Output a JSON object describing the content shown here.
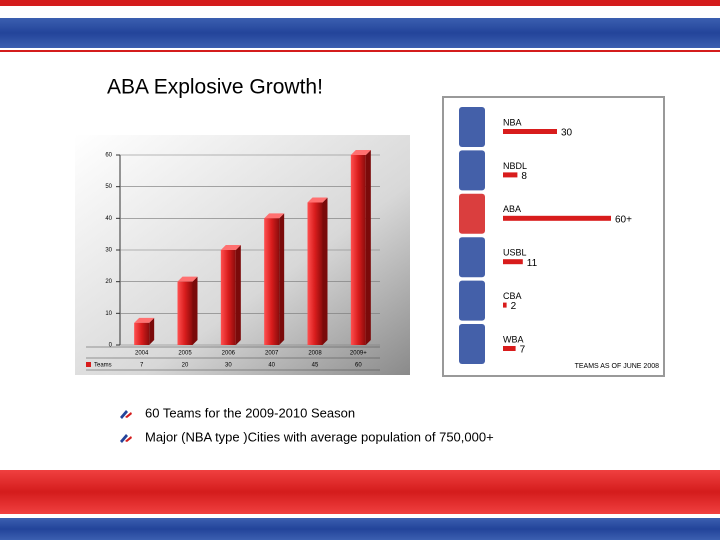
{
  "title": "ABA Explosive Growth!",
  "chart_data": [
    {
      "type": "bar",
      "categories": [
        "2004",
        "2005",
        "2006",
        "2007",
        "2008",
        "2009+"
      ],
      "series": [
        {
          "name": "Teams",
          "color": "#d81c1c",
          "values": [
            7,
            20,
            30,
            40,
            45,
            60
          ]
        }
      ],
      "ylim": [
        0,
        60
      ],
      "yticks": [
        0,
        10,
        20,
        30,
        40,
        50,
        60
      ],
      "grid": true
    },
    {
      "type": "hbar",
      "categories": [
        "NBA",
        "NBDL",
        "ABA",
        "USBL",
        "CBA",
        "WBA"
      ],
      "values": [
        30,
        8,
        60,
        11,
        2,
        7
      ],
      "value_labels": [
        "30",
        "8",
        "60+",
        "11",
        "2",
        "7"
      ],
      "color": "#d81c1c",
      "footnote": "TEAMS AS OF JUNE 2008"
    }
  ],
  "bullets": [
    "60 Teams for the 2009-2010 Season",
    "Major (NBA type )Cities with average population of 750,000+"
  ]
}
